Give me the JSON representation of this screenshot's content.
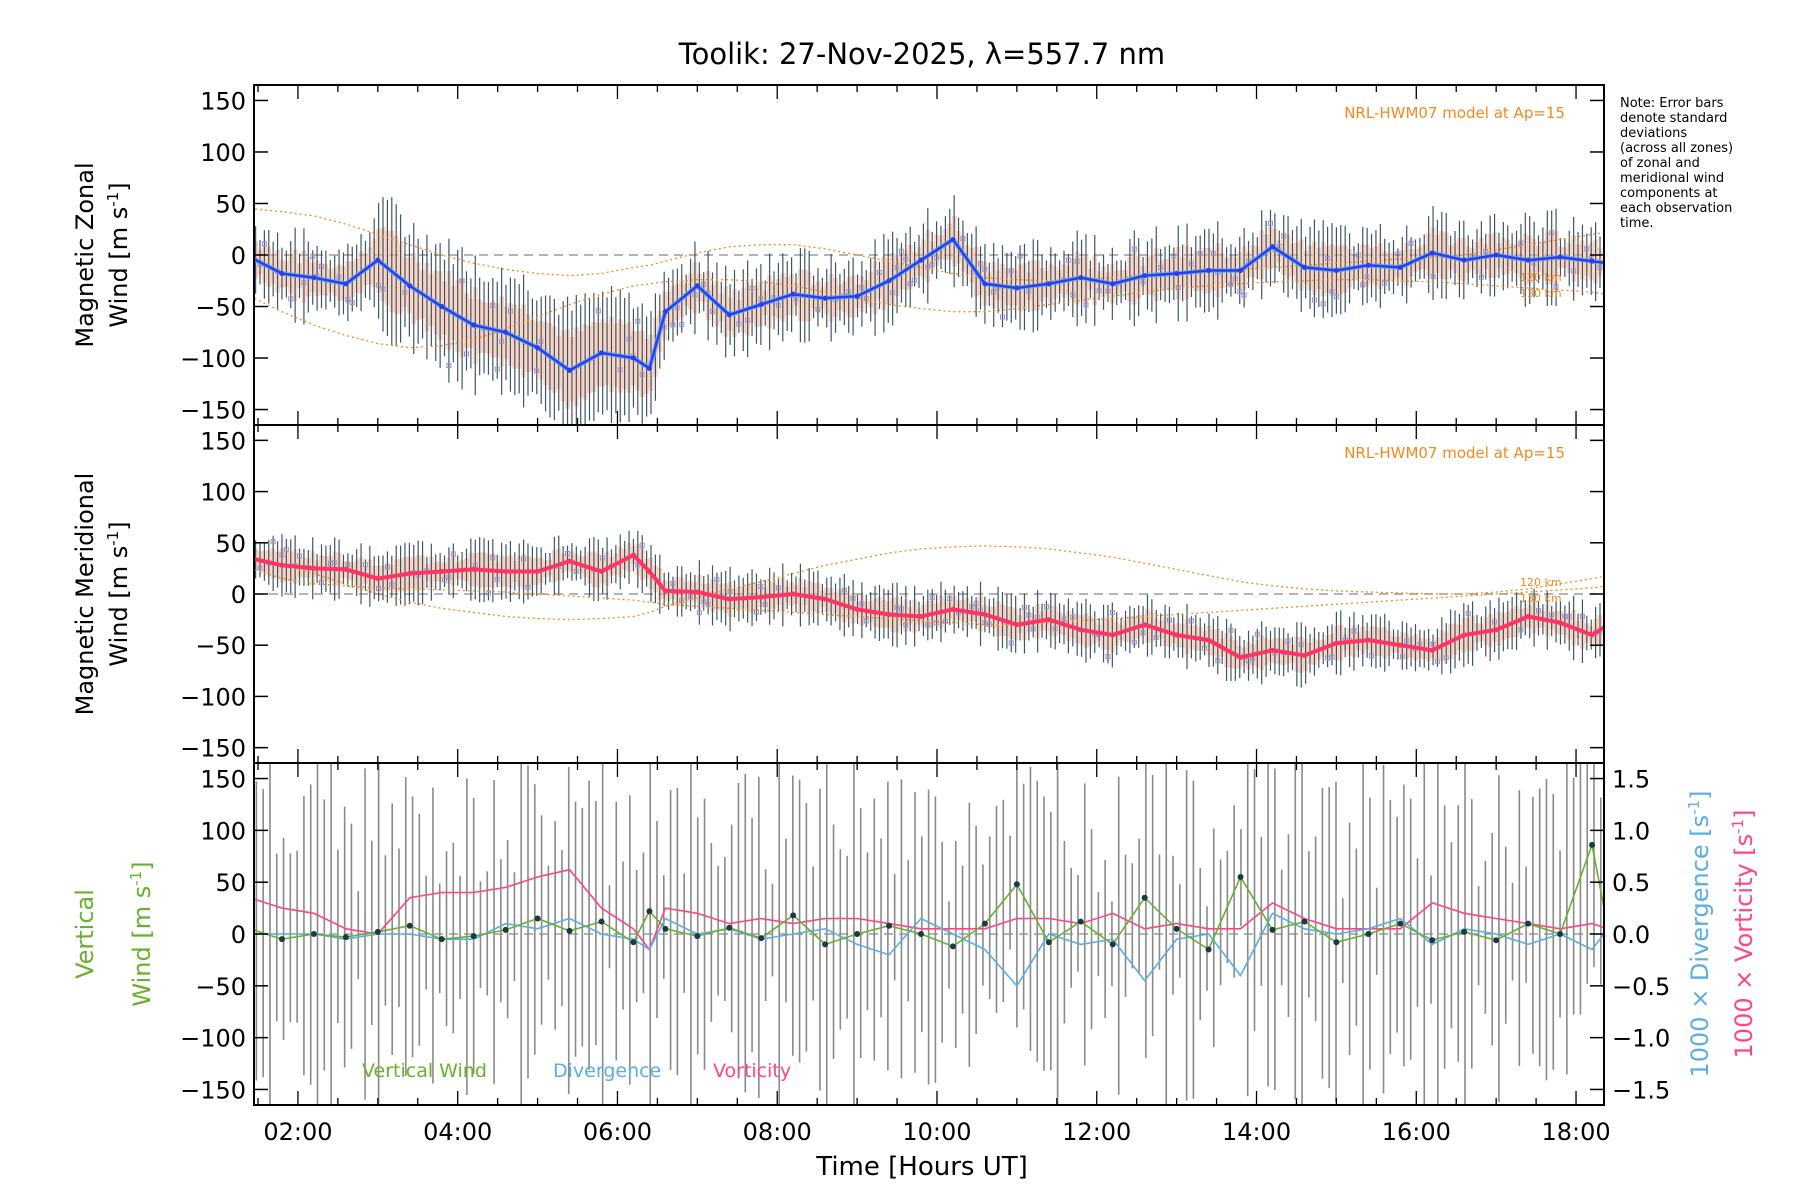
{
  "title": "Toolik: 27-Nov-2025, λ=557.7 nm",
  "note": {
    "lines": [
      "Note: Error bars",
      "denote standard",
      "deviations",
      "(across all zones)",
      "of zonal and",
      "meridional wind",
      "components at",
      "each observation",
      "time."
    ]
  },
  "colors": {
    "model": "#f08a20",
    "zonal": "#2a3df0",
    "zonal_light": "#55aaee",
    "meridional": "#ff3366",
    "vertical": "#6ab030",
    "divergence": "#5aaee0",
    "vorticity": "#ff4488",
    "errorbar": "#1e3a4a",
    "scatter": "#9a8fd0",
    "band": "#f7b9a0"
  },
  "chart_data": [
    {
      "type": "line",
      "panel": "zonal",
      "ylabel_line1": "Magnetic Zonal",
      "ylabel_line2": "Wind [m s",
      "ylabel_sup": "-1",
      "ylabel_close": "]",
      "ylim": [
        -165,
        165
      ],
      "yticks": [
        "150",
        "100",
        "50",
        "0",
        "−50",
        "−100",
        "−150"
      ],
      "model_label": "NRL-HWM07 model at Ap=15",
      "model_alt_labels": [
        "120 km",
        "130 km"
      ],
      "x_hours": [
        1.4,
        1.8,
        2.2,
        2.6,
        3.0,
        3.4,
        3.8,
        4.2,
        4.6,
        5.0,
        5.4,
        5.8,
        6.2,
        6.4,
        6.6,
        7.0,
        7.4,
        7.8,
        8.2,
        8.6,
        9.0,
        9.4,
        9.8,
        10.2,
        10.6,
        11.0,
        11.4,
        11.8,
        12.2,
        12.6,
        13.0,
        13.4,
        13.8,
        14.2,
        14.6,
        15.0,
        15.4,
        15.8,
        16.2,
        16.6,
        17.0,
        17.4,
        17.8,
        18.2,
        18.4
      ],
      "values": [
        -2,
        -18,
        -22,
        -28,
        -5,
        -30,
        -50,
        -68,
        -75,
        -90,
        -112,
        -95,
        -100,
        -110,
        -55,
        -30,
        -58,
        -48,
        -38,
        -42,
        -40,
        -25,
        -5,
        15,
        -28,
        -32,
        -28,
        -22,
        -28,
        -20,
        -18,
        -15,
        -15,
        8,
        -12,
        -15,
        -10,
        -12,
        2,
        -5,
        0,
        -5,
        -2,
        -6,
        -8
      ],
      "model_120km": [
        45,
        42,
        38,
        30,
        20,
        10,
        0,
        -8,
        -14,
        -18,
        -20,
        -18,
        -12,
        -10,
        -6,
        2,
        8,
        10,
        10,
        6,
        0,
        -6,
        -12,
        -18,
        -22,
        -24,
        -25,
        -24,
        -22,
        -20,
        -18,
        -16,
        -14,
        -12,
        -10,
        -8,
        -6,
        -4,
        -2,
        0,
        5,
        10,
        15,
        20,
        22
      ],
      "model_130km": [
        -40,
        -55,
        -68,
        -78,
        -86,
        -90,
        -88,
        -82,
        -72,
        -60,
        -48,
        -38,
        -30,
        -28,
        -26,
        -24,
        -24,
        -26,
        -30,
        -36,
        -42,
        -48,
        -52,
        -55,
        -55,
        -52,
        -48,
        -44,
        -40,
        -36,
        -32,
        -30,
        -28,
        -26,
        -25,
        -24,
        -24,
        -25,
        -26,
        -28,
        -30,
        -32,
        -34,
        -36,
        -38
      ]
    },
    {
      "type": "line",
      "panel": "meridional",
      "ylabel_line1": "Magnetic Meridional",
      "ylabel_line2": "Wind [m s",
      "ylabel_sup": "-1",
      "ylabel_close": "]",
      "ylim": [
        -165,
        165
      ],
      "yticks": [
        "150",
        "100",
        "50",
        "0",
        "−50",
        "−100",
        "−150"
      ],
      "model_label": "NRL-HWM07 model at Ap=15",
      "model_alt_labels": [
        "120 km",
        "130 km"
      ],
      "x_hours": [
        1.4,
        1.8,
        2.2,
        2.6,
        3.0,
        3.4,
        3.8,
        4.2,
        4.6,
        5.0,
        5.4,
        5.8,
        6.2,
        6.4,
        6.6,
        7.0,
        7.4,
        7.8,
        8.2,
        8.6,
        9.0,
        9.4,
        9.8,
        10.2,
        10.6,
        11.0,
        11.4,
        11.8,
        12.2,
        12.6,
        13.0,
        13.4,
        13.8,
        14.2,
        14.6,
        15.0,
        15.4,
        15.8,
        16.2,
        16.6,
        17.0,
        17.4,
        17.8,
        18.2,
        18.4
      ],
      "values": [
        35,
        28,
        25,
        24,
        15,
        20,
        22,
        24,
        22,
        22,
        32,
        22,
        38,
        22,
        3,
        2,
        -5,
        -3,
        0,
        -5,
        -15,
        -20,
        -22,
        -15,
        -20,
        -30,
        -25,
        -35,
        -40,
        -30,
        -40,
        -45,
        -62,
        -55,
        -60,
        -48,
        -45,
        -50,
        -55,
        -40,
        -35,
        -22,
        -28,
        -40,
        -30
      ],
      "model_120km": [
        25,
        15,
        10,
        8,
        6,
        5,
        4,
        3,
        2,
        0,
        -2,
        -4,
        -6,
        -8,
        -10,
        -12,
        -14,
        -16,
        -18,
        -20,
        -22,
        -24,
        -26,
        -28,
        -30,
        -30,
        -28,
        -26,
        -24,
        -22,
        -20,
        -18,
        -16,
        -14,
        -12,
        -10,
        -8,
        -6,
        -4,
        -2,
        0,
        2,
        4,
        6,
        8
      ],
      "model_130km": [
        35,
        28,
        20,
        10,
        0,
        -8,
        -14,
        -18,
        -22,
        -24,
        -25,
        -24,
        -22,
        -18,
        -12,
        -4,
        5,
        12,
        20,
        28,
        34,
        40,
        44,
        46,
        47,
        46,
        44,
        40,
        36,
        30,
        24,
        18,
        12,
        8,
        5,
        3,
        2,
        1,
        0,
        0,
        2,
        5,
        10,
        15,
        18
      ]
    },
    {
      "type": "line",
      "panel": "vertical",
      "ylabel_line1": "Vertical",
      "ylabel_line2": "Wind [m s",
      "ylabel_sup": "-1",
      "ylabel_close": "]",
      "ylim": [
        -165,
        165
      ],
      "yticks": [
        "150",
        "100",
        "50",
        "0",
        "−50",
        "−100",
        "−150"
      ],
      "y2lim": [
        -1.65,
        1.65
      ],
      "y2ticks": [
        "1.5",
        "1.0",
        "0.5",
        "0.0",
        "−0.5",
        "−1.0",
        "−1.5"
      ],
      "y2label_div": "1000 × Divergence [s",
      "y2label_vor": "1000 × Vorticity [s",
      "y2label_sup": "-1",
      "y2label_close": "]",
      "legend": [
        "Vertical Wind",
        "Divergence",
        "Vorticity"
      ],
      "x_hours": [
        1.4,
        1.8,
        2.2,
        2.6,
        3.0,
        3.4,
        3.8,
        4.2,
        4.6,
        5.0,
        5.4,
        5.8,
        6.2,
        6.4,
        6.6,
        7.0,
        7.4,
        7.8,
        8.2,
        8.6,
        9.0,
        9.4,
        9.8,
        10.2,
        10.6,
        11.0,
        11.4,
        11.8,
        12.2,
        12.6,
        13.0,
        13.4,
        13.8,
        14.2,
        14.6,
        15.0,
        15.4,
        15.8,
        16.2,
        16.6,
        17.0,
        17.4,
        17.8,
        18.2,
        18.4
      ],
      "vertical_wind": [
        5,
        -5,
        0,
        -3,
        2,
        8,
        -5,
        -2,
        4,
        15,
        3,
        12,
        -8,
        22,
        5,
        -2,
        6,
        -4,
        18,
        -10,
        0,
        8,
        0,
        -12,
        10,
        48,
        -8,
        12,
        -10,
        35,
        5,
        -15,
        55,
        4,
        12,
        -8,
        0,
        10,
        -6,
        2,
        -6,
        10,
        0,
        86,
        5
      ],
      "divergence": [
        0.0,
        0.0,
        0.0,
        -0.05,
        0.0,
        0.0,
        -0.05,
        -0.05,
        0.1,
        0.05,
        0.15,
        0.0,
        -0.05,
        -0.15,
        0.15,
        0.0,
        0.05,
        -0.05,
        0.0,
        0.05,
        -0.1,
        -0.2,
        0.15,
        0.0,
        -0.15,
        -0.5,
        0.0,
        -0.1,
        -0.05,
        -0.45,
        -0.05,
        0.0,
        -0.4,
        0.2,
        0.05,
        0.0,
        0.05,
        0.15,
        -0.1,
        0.05,
        0.0,
        -0.1,
        0.0,
        -0.15,
        0.05
      ],
      "vorticity": [
        0.35,
        0.25,
        0.2,
        0.05,
        0.0,
        0.35,
        0.4,
        0.4,
        0.45,
        0.55,
        0.62,
        0.25,
        0.05,
        -0.15,
        0.25,
        0.2,
        0.1,
        0.15,
        0.1,
        0.15,
        0.15,
        0.1,
        0.05,
        0.05,
        0.05,
        0.15,
        0.15,
        0.1,
        0.2,
        0.05,
        0.1,
        0.05,
        0.05,
        0.3,
        0.15,
        0.05,
        0.05,
        0.05,
        0.3,
        0.2,
        0.15,
        0.1,
        0.05,
        0.1,
        0.05
      ]
    }
  ],
  "x_axis": {
    "xlim": [
      1.45,
      18.35
    ],
    "tick_hours": [
      2,
      4,
      6,
      8,
      10,
      12,
      14,
      16,
      18
    ],
    "tick_labels": [
      "02:00",
      "04:00",
      "06:00",
      "08:00",
      "10:00",
      "12:00",
      "14:00",
      "16:00",
      "18:00"
    ],
    "xlabel": "Time [Hours UT]"
  }
}
